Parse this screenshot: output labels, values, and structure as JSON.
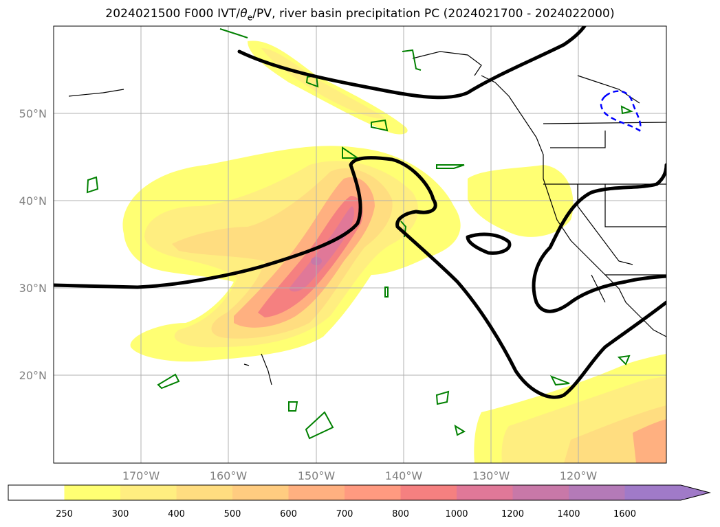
{
  "title": {
    "prefix": "2024021500 F000 IVT/",
    "theta": "θ",
    "sub": "e",
    "suffix": "/PV, river basin precipitation PC (2024021700 - 2024022000)"
  },
  "map": {
    "lat_labels": [
      "50°N",
      "40°N",
      "30°N",
      "20°N"
    ],
    "lon_labels": [
      "170°W",
      "160°W",
      "150°W",
      "140°W",
      "130°W",
      "120°W"
    ],
    "lat_range": [
      10,
      60
    ],
    "lon_range": [
      -180,
      -110
    ],
    "layers": [
      "IVT filled contours",
      "PV contour (black)",
      "theta-e contours (green)",
      "precipitation PC contour (blue dashed)",
      "coastlines and borders"
    ]
  },
  "colorbar": {
    "ticks": [
      "250",
      "300",
      "400",
      "500",
      "600",
      "700",
      "800",
      "1000",
      "1200",
      "1400",
      "1600"
    ],
    "colors": [
      "#ffffff",
      "#ffff73",
      "#ffee80",
      "#ffdd80",
      "#ffcc80",
      "#ffb080",
      "#ff9a80",
      "#f58080",
      "#e07898",
      "#c878a8",
      "#b47ab8",
      "#a07ac8"
    ],
    "extend": "max"
  }
}
